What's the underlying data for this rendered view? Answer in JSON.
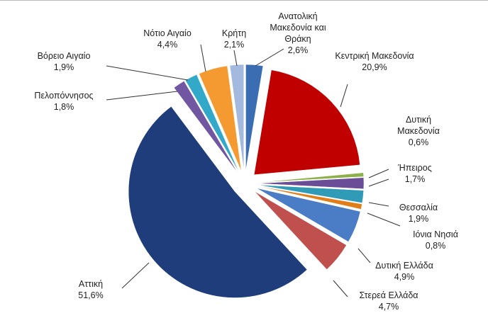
{
  "chart_data": {
    "type": "pie",
    "categories": [
      "Ανατολική Μακεδονία και Θράκη",
      "Κεντρική Μακεδονία",
      "Δυτική Μακεδονία",
      "Ήπειρος",
      "Θεσσαλία",
      "Ιόνια Νησιά",
      "Δυτική Ελλάδα",
      "Στερεά Ελλάδα",
      "Αττική",
      "Πελοπόννησος",
      "Βόρειο Αιγαίο",
      "Νότιο Αιγαίο",
      "Κρήτη"
    ],
    "values": [
      2.6,
      20.9,
      0.6,
      1.7,
      1.9,
      0.8,
      4.9,
      4.7,
      51.6,
      1.8,
      1.9,
      4.4,
      2.1
    ],
    "value_labels": [
      "2,6%",
      "20,9%",
      "0,6%",
      "1,7%",
      "1,9%",
      "0,8%",
      "4,9%",
      "4,7%",
      "51,6%",
      "1,8%",
      "1,9%",
      "4,4%",
      "2,1%"
    ],
    "colors": [
      "#3b6db3",
      "#c00000",
      "#8db04a",
      "#6b4c96",
      "#2f9bb6",
      "#e07f1a",
      "#4a7dc6",
      "#c0504d",
      "#1f3d7a",
      "#7156a2",
      "#33a9c9",
      "#f59a30",
      "#a3b9de"
    ]
  }
}
